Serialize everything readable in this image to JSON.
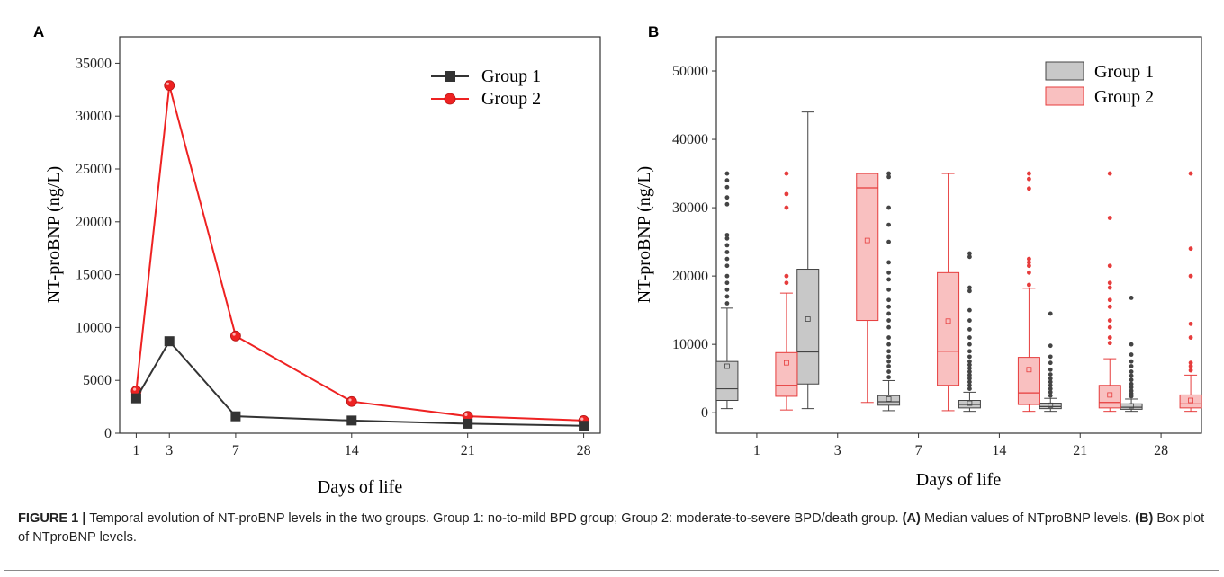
{
  "chart_data": [
    {
      "panel": "A",
      "type": "line",
      "title": "",
      "xlabel": "Days of life",
      "ylabel": "NT-proBNP (ng/L)",
      "x": [
        1,
        3,
        7,
        14,
        21,
        28
      ],
      "xticks": [
        "1",
        "3",
        "7",
        "14",
        "21",
        "28"
      ],
      "xlim": [
        0,
        29
      ],
      "ylim": [
        0,
        37500
      ],
      "yticks": [
        0,
        5000,
        10000,
        15000,
        20000,
        25000,
        30000,
        35000
      ],
      "grid": false,
      "legend": "top-right",
      "series": [
        {
          "name": "Group 1",
          "color": "#333333",
          "marker": "square",
          "values": [
            3300,
            8700,
            1600,
            1200,
            900,
            700
          ]
        },
        {
          "name": "Group 2",
          "color": "#ee2222",
          "marker": "circle",
          "values": [
            4000,
            32900,
            9200,
            3000,
            1600,
            1200
          ]
        }
      ]
    },
    {
      "panel": "B",
      "type": "box",
      "title": "",
      "xlabel": "Days of life",
      "ylabel": "NT-proBNP (ng/L)",
      "categories": [
        "1",
        "3",
        "7",
        "14",
        "21",
        "28"
      ],
      "ylim": [
        -3000,
        55000
      ],
      "yticks": [
        0,
        10000,
        20000,
        30000,
        40000,
        50000
      ],
      "grid": false,
      "legend": "top-right",
      "series": [
        {
          "name": "Group 1",
          "fill": "#c8c8c8",
          "stroke": "#444444",
          "boxes": [
            {
              "low": 600,
              "q1": 1800,
              "median": 3500,
              "q3": 7500,
              "high": 15300,
              "mean": 6800,
              "outliers": [
                16000,
                17000,
                18000,
                19000,
                20000,
                21500,
                22500,
                23500,
                24500,
                25500,
                26000,
                30500,
                31500,
                33000,
                34000,
                35000
              ]
            },
            {
              "low": 600,
              "q1": 4200,
              "median": 8900,
              "q3": 21000,
              "high": 44000,
              "mean": 13700,
              "outliers": []
            },
            {
              "low": 300,
              "q1": 1100,
              "median": 1600,
              "q3": 2500,
              "high": 4700,
              "mean": 2000,
              "outliers": [
                5200,
                6000,
                6800,
                7500,
                8200,
                9000,
                10000,
                11000,
                12500,
                13500,
                14500,
                15500,
                16500,
                18000,
                19500,
                20500,
                22000,
                25000,
                27500,
                30000,
                34500,
                35000
              ]
            },
            {
              "low": 200,
              "q1": 700,
              "median": 1200,
              "q3": 1800,
              "high": 3000,
              "mean": 1400,
              "outliers": [
                3500,
                4000,
                4500,
                5000,
                5500,
                6000,
                6500,
                7000,
                7500,
                8200,
                9000,
                10000,
                11000,
                12200,
                13500,
                15000,
                17800,
                18300,
                22800,
                23300
              ]
            },
            {
              "low": 200,
              "q1": 600,
              "median": 900,
              "q3": 1400,
              "high": 2100,
              "mean": 1100,
              "outliers": [
                2500,
                3000,
                3500,
                4000,
                4500,
                5000,
                5600,
                6300,
                7300,
                8200,
                9800,
                14500
              ]
            },
            {
              "low": 200,
              "q1": 500,
              "median": 800,
              "q3": 1300,
              "high": 2000,
              "mean": 1000,
              "outliers": [
                2400,
                2800,
                3200,
                3700,
                4200,
                4800,
                5400,
                6000,
                6800,
                7500,
                8500,
                10000,
                16800
              ]
            }
          ]
        },
        {
          "name": "Group 2",
          "fill": "#f9c0c0",
          "stroke": "#e63c3c",
          "boxes": [
            {
              "low": 400,
              "q1": 2400,
              "median": 4000,
              "q3": 8800,
              "high": 17500,
              "mean": 7300,
              "outliers": [
                19000,
                20000,
                30000,
                32000,
                35000
              ]
            },
            {
              "low": 1500,
              "q1": 13500,
              "median": 32900,
              "q3": 35000,
              "high": 35000,
              "mean": 25200,
              "outliers": []
            },
            {
              "low": 300,
              "q1": 4000,
              "median": 9000,
              "q3": 20500,
              "high": 35000,
              "mean": 13400,
              "outliers": []
            },
            {
              "low": 200,
              "q1": 1200,
              "median": 2900,
              "q3": 8100,
              "high": 18200,
              "mean": 6300,
              "outliers": [
                18700,
                20500,
                21500,
                22000,
                22500,
                32800,
                34200,
                35000
              ]
            },
            {
              "low": 200,
              "q1": 700,
              "median": 1500,
              "q3": 4000,
              "high": 7900,
              "mean": 2600,
              "outliers": [
                10200,
                11000,
                12500,
                13500,
                15500,
                16500,
                18300,
                19000,
                21500,
                28500,
                35000
              ]
            },
            {
              "low": 200,
              "q1": 700,
              "median": 1300,
              "q3": 2600,
              "high": 5500,
              "mean": 1800,
              "outliers": [
                6200,
                6800,
                7300,
                11000,
                13000,
                20000,
                24000,
                35000
              ]
            }
          ]
        }
      ]
    }
  ],
  "caption": {
    "label": "FIGURE 1 |",
    "text1": " Temporal evolution of NT-proBNP levels in the two groups. Group 1: no-to-mild BPD group; Group 2: moderate-to-severe BPD/death group. ",
    "partA": "(A)",
    "text2": " Median values of NTproBNP levels. ",
    "partB": "(B)",
    "text3": " Box plot of NTproBNP levels."
  }
}
